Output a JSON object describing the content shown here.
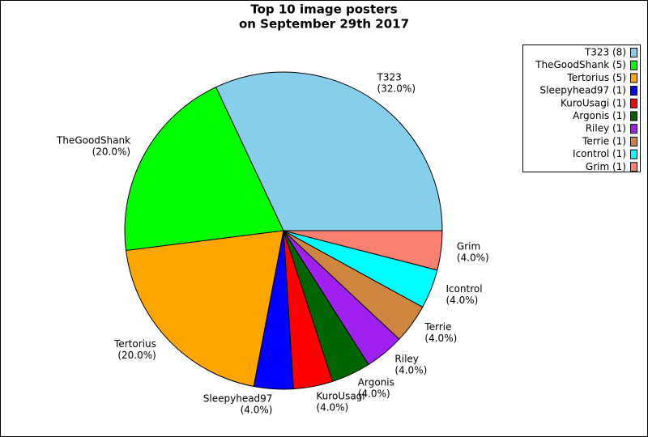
{
  "chart_data": {
    "type": "pie",
    "title": [
      "Top 10 image posters",
      "on September 29th 2017"
    ],
    "categories": [
      "T323",
      "TheGoodShank",
      "Tertorius",
      "Sleepyhead97",
      "KuroUsagi",
      "Argonis",
      "Riley",
      "Terrie",
      "Icontrol",
      "Grim"
    ],
    "values": [
      32,
      20,
      20,
      4,
      4,
      4,
      4,
      4,
      4,
      4
    ],
    "value_labels": [
      "(32.0%)",
      "(20.0%)",
      "(20.0%)",
      "(4.0%)",
      "(4.0%)",
      "(4.0%)",
      "(4.0%)",
      "(4.0%)",
      "(4.0%)",
      "(4.0%)"
    ],
    "legend_labels": [
      "T323 (8)",
      "TheGoodShank (5)",
      "Tertorius (5)",
      "Sleepyhead97 (1)",
      "KuroUsagi (1)",
      "Argonis (1)",
      "Riley (1)",
      "Terrie (1)",
      "Icontrol (1)",
      "Grim (1)"
    ],
    "colors": [
      "#87ceeb",
      "#00ff00",
      "#ffa500",
      "#0000ff",
      "#ff0000",
      "#006400",
      "#a020f0",
      "#cd853f",
      "#00ffff",
      "#fa8072"
    ],
    "legend": "upper right"
  }
}
